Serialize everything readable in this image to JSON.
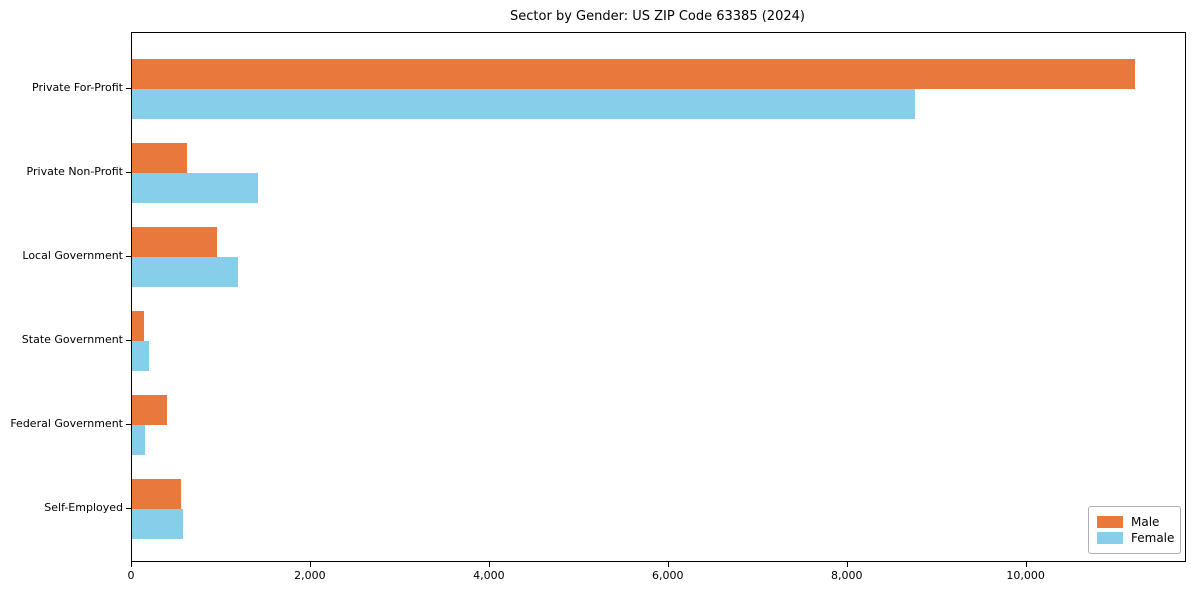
{
  "title": "Sector by Gender: US ZIP Code 63385 (2024)",
  "colors": {
    "male": "#e8793b",
    "female": "#87ceeb",
    "axis": "#000000",
    "background": "#ffffff",
    "legend_border": "#b0b0b0"
  },
  "chart_data": {
    "type": "bar",
    "orientation": "horizontal",
    "title": "Sector by Gender: US ZIP Code 63385 (2024)",
    "categories": [
      "Private For-Profit",
      "Private Non-Profit",
      "Local Government",
      "State Government",
      "Federal Government",
      "Self-Employed"
    ],
    "series": [
      {
        "name": "Male",
        "color": "#e8793b",
        "values": [
          11210,
          615,
          955,
          130,
          390,
          550
        ]
      },
      {
        "name": "Female",
        "color": "#87ceeb",
        "values": [
          8750,
          1405,
          1185,
          185,
          140,
          565
        ]
      }
    ],
    "xlabel": "",
    "ylabel": "",
    "xlim": [
      0,
      11770
    ],
    "xticks": [
      0,
      2000,
      4000,
      6000,
      8000,
      10000
    ],
    "xtick_labels": [
      "0",
      "2,000",
      "4,000",
      "6,000",
      "8,000",
      "10,000"
    ],
    "grid": false,
    "legend": {
      "position": "lower right",
      "items": [
        {
          "label": "Male",
          "color": "#e8793b"
        },
        {
          "label": "Female",
          "color": "#87ceeb"
        }
      ]
    }
  }
}
